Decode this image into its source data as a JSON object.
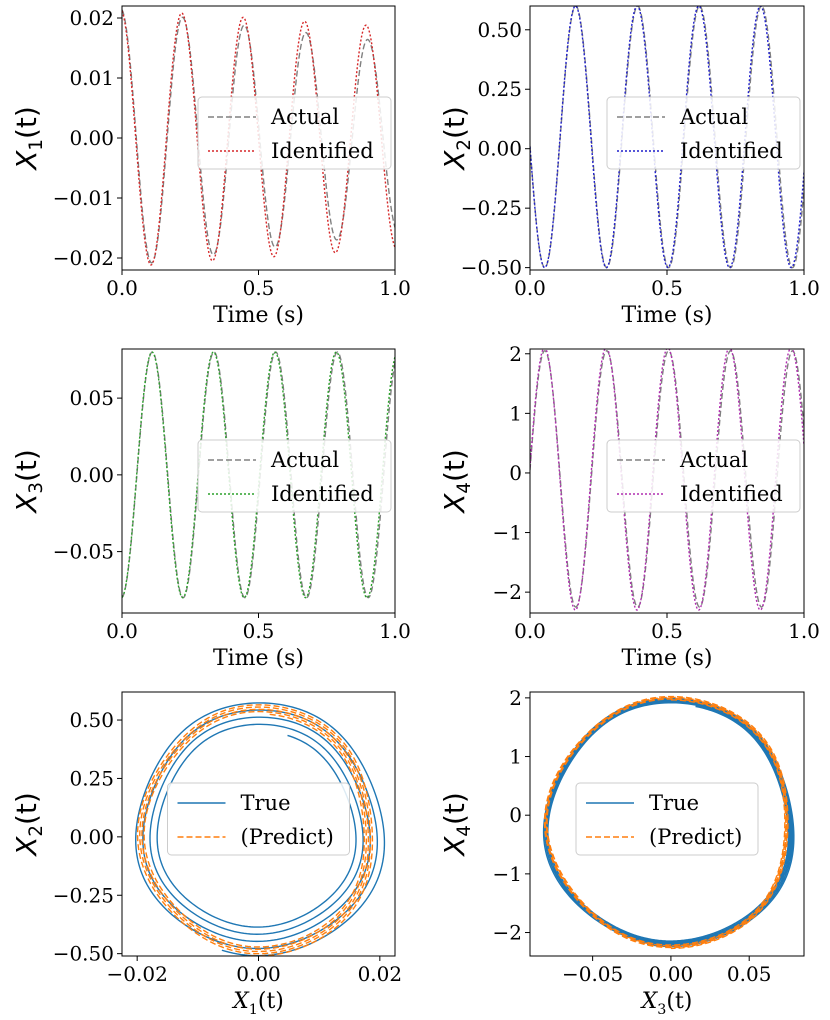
{
  "figure": {
    "background": "#ffffff",
    "grid_layout": "3 rows x 2 columns"
  },
  "chart_data": [
    {
      "id": "x1",
      "type": "line",
      "xlabel": "Time (s)",
      "ylabel": {
        "base": "X",
        "sub": "1",
        "suffix": "(t)"
      },
      "xlim": [
        0,
        1
      ],
      "ylim": [
        -0.022,
        0.022
      ],
      "xticks": [
        0,
        0.5,
        1
      ],
      "xtick_labels": [
        "0.0",
        "0.5",
        "1.0"
      ],
      "yticks": [
        -0.02,
        -0.01,
        0,
        0.01,
        0.02
      ],
      "ytick_labels": [
        "−0.02",
        "−0.01",
        "0.00",
        "0.01",
        "0.02"
      ],
      "legend": "center-right",
      "series": [
        {
          "name": "Actual",
          "style": "dashed",
          "color": "#808080",
          "amp": 0.0215,
          "period": 0.226,
          "t0": 0.222,
          "decay": 0.3
        },
        {
          "name": "Identified",
          "style": "dotted",
          "color": "#d62728",
          "amp": 0.0215,
          "period": 0.225,
          "t0": 0.219,
          "decay": 0.15
        }
      ]
    },
    {
      "id": "x2",
      "type": "line",
      "xlabel": "Time (s)",
      "ylabel": {
        "base": "X",
        "sub": "2",
        "suffix": "(t)"
      },
      "xlim": [
        0,
        1
      ],
      "ylim": [
        -0.51,
        0.6
      ],
      "xticks": [
        0,
        0.5,
        1
      ],
      "xtick_labels": [
        "0.0",
        "0.5",
        "1.0"
      ],
      "yticks": [
        -0.5,
        -0.25,
        0,
        0.25,
        0.5
      ],
      "ytick_labels": [
        "−0.50",
        "−0.25",
        "0.00",
        "0.25",
        "0.50"
      ],
      "legend": "center-right",
      "series": [
        {
          "name": "Actual",
          "style": "dashed",
          "color": "#808080",
          "amp": 0.55,
          "offset": 0.05,
          "period": 0.226,
          "t0": 0.167,
          "decay": 0
        },
        {
          "name": "Identified",
          "style": "dotted",
          "color": "#1f1fcc",
          "amp": 0.55,
          "offset": 0.05,
          "period": 0.225,
          "t0": 0.166,
          "decay": 0
        }
      ]
    },
    {
      "id": "x3",
      "type": "line",
      "xlabel": "Time (s)",
      "ylabel": {
        "base": "X",
        "sub": "3",
        "suffix": "(t)"
      },
      "xlim": [
        0,
        1
      ],
      "ylim": [
        -0.09,
        0.082
      ],
      "xticks": [
        0,
        0.5,
        1
      ],
      "xtick_labels": [
        "0.0",
        "0.5",
        "1.0"
      ],
      "yticks": [
        -0.05,
        0,
        0.05
      ],
      "ytick_labels": [
        "−0.05",
        "0.00",
        "0.05"
      ],
      "legend": "center-right",
      "series": [
        {
          "name": "Actual",
          "style": "dashed",
          "color": "#808080",
          "amp": 0.08,
          "period": 0.226,
          "t0": 0.111,
          "decay": 0
        },
        {
          "name": "Identified",
          "style": "dotted",
          "color": "#2ca02c",
          "amp": 0.08,
          "period": 0.225,
          "t0": 0.11,
          "decay": 0
        }
      ]
    },
    {
      "id": "x4",
      "type": "line",
      "xlabel": "Time (s)",
      "ylabel": {
        "base": "X",
        "sub": "4",
        "suffix": "(t)"
      },
      "xlim": [
        0,
        1
      ],
      "ylim": [
        -2.35,
        2.08
      ],
      "xticks": [
        0,
        0.5,
        1
      ],
      "xtick_labels": [
        "0.0",
        "0.5",
        "1.0"
      ],
      "yticks": [
        -2,
        -1,
        0,
        1,
        2
      ],
      "ytick_labels": [
        "−2",
        "−1",
        "0",
        "1",
        "2"
      ],
      "legend": "center-right",
      "series": [
        {
          "name": "Actual",
          "style": "dashed",
          "color": "#808080",
          "amp": 2.15,
          "offset": -0.1,
          "period": 0.226,
          "t0": 0.054,
          "decay": 0
        },
        {
          "name": "Identified",
          "style": "dotted",
          "color": "#b02fb0",
          "amp": 2.2,
          "offset": -0.1,
          "period": 0.225,
          "t0": 0.053,
          "decay": 0
        }
      ]
    },
    {
      "id": "phase12",
      "type": "line",
      "xlabel": {
        "base": "X",
        "sub": "1",
        "suffix": "(t)"
      },
      "ylabel": {
        "base": "X",
        "sub": "2",
        "suffix": "(t)"
      },
      "xlim": [
        -0.0225,
        0.0225
      ],
      "ylim": [
        -0.51,
        0.62
      ],
      "xticks": [
        -0.02,
        0,
        0.02
      ],
      "xtick_labels": [
        "−0.02",
        "0.00",
        "0.02"
      ],
      "yticks": [
        -0.5,
        -0.25,
        0,
        0.25,
        0.5
      ],
      "ytick_labels": [
        "−0.50",
        "−0.25",
        "0.00",
        "0.25",
        "0.50"
      ],
      "legend": "center",
      "series": [
        {
          "name": "True",
          "style": "solid",
          "color": "#1f77b4",
          "cx": 0.0,
          "cy": 0.04,
          "rx": 0.021,
          "ry": 0.55,
          "shrink": 0.25,
          "turns": 4.5,
          "phase": 0.3
        },
        {
          "name": "(Predict)",
          "style": "dashed",
          "color": "#ff7f0e",
          "cx": 0.0,
          "cy": 0.03,
          "rx": 0.0195,
          "ry": 0.54,
          "shrink": 0.08,
          "turns": 4.5,
          "phase": 0.1
        }
      ]
    },
    {
      "id": "phase34",
      "type": "line",
      "xlabel": {
        "base": "X",
        "sub": "3",
        "suffix": "(t)"
      },
      "ylabel": {
        "base": "X",
        "sub": "4",
        "suffix": "(t)"
      },
      "xlim": [
        -0.09,
        0.085
      ],
      "ylim": [
        -2.4,
        2.1
      ],
      "xticks": [
        -0.05,
        0,
        0.05
      ],
      "xtick_labels": [
        "−0.05",
        "0.00",
        "0.05"
      ],
      "yticks": [
        -2,
        -1,
        0,
        1,
        2
      ],
      "ytick_labels": [
        "−2",
        "−1",
        "0",
        "1",
        "2"
      ],
      "legend": "center",
      "series": [
        {
          "name": "True",
          "style": "solid",
          "color": "#1f77b4",
          "cx": 0.0,
          "cy": -0.12,
          "rx": 0.08,
          "ry": 2.12,
          "shrink": 0.05,
          "turns": 4.5,
          "phase": 0.2
        },
        {
          "name": "(Predict)",
          "style": "dashed",
          "color": "#ff7f0e",
          "cx": 0.0,
          "cy": -0.12,
          "rx": 0.078,
          "ry": 2.15,
          "shrink": 0.03,
          "turns": 4.5,
          "phase": 0.0
        }
      ]
    }
  ]
}
